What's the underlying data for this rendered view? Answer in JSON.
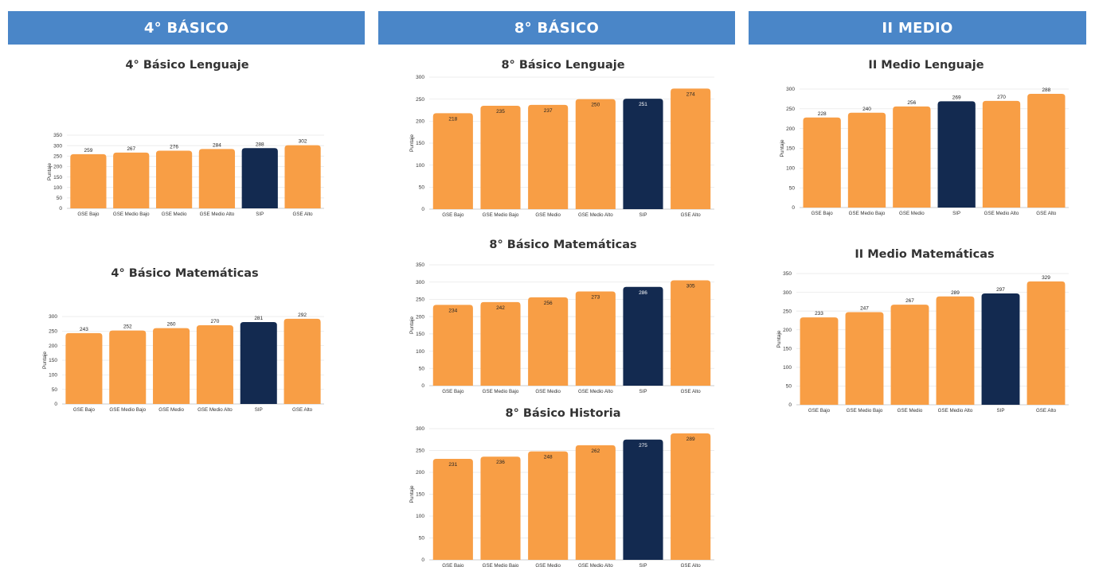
{
  "colors": {
    "header": "#4a86c8",
    "gse": "#f89e45",
    "sip": "#132a50",
    "grid": "#e6e6e6"
  },
  "headers": [
    "4° BÁSICO",
    "8° BÁSICO",
    "II MEDIO"
  ],
  "chart_data": [
    {
      "type": "bar",
      "title": "4° Básico Lenguaje",
      "ylabel": "Puntaje",
      "ylim": [
        0,
        350
      ],
      "yticks": [
        0,
        50,
        100,
        150,
        200,
        250,
        300,
        350
      ],
      "categories": [
        "GSE Bajo",
        "GSE Medio Bajo",
        "GSE Medio",
        "GSE Medio Alto",
        "SIP",
        "GSE Alto"
      ],
      "values": [
        259,
        267,
        276,
        284,
        288,
        302
      ],
      "highlight": "SIP",
      "label_position": "above"
    },
    {
      "type": "bar",
      "title": "4° Básico Matemáticas",
      "ylabel": "Puntaje",
      "ylim": [
        0,
        300
      ],
      "yticks": [
        0,
        50,
        100,
        150,
        200,
        250,
        300
      ],
      "categories": [
        "GSE Bajo",
        "GSE Medio Bajo",
        "GSE Medio",
        "GSE Medio Alto",
        "SIP",
        "GSE Alto"
      ],
      "values": [
        243,
        252,
        260,
        270,
        281,
        292
      ],
      "highlight": "SIP",
      "label_position": "above"
    },
    {
      "type": "bar",
      "title": "8° Básico Lenguaje",
      "ylabel": "Puntaje",
      "ylim": [
        0,
        300
      ],
      "yticks": [
        0,
        50,
        100,
        150,
        200,
        250,
        300
      ],
      "categories": [
        "GSE Bajo",
        "GSE Medio Bajo",
        "GSE Medio",
        "GSE Medio Alto",
        "SIP",
        "GSE Alto"
      ],
      "values": [
        218,
        235,
        237,
        250,
        251,
        274
      ],
      "highlight": "SIP",
      "label_position": "inside"
    },
    {
      "type": "bar",
      "title": "8° Básico Matemáticas",
      "ylabel": "Puntaje",
      "ylim": [
        0,
        350
      ],
      "yticks": [
        0,
        50,
        100,
        150,
        200,
        250,
        300,
        350
      ],
      "categories": [
        "GSE Bajo",
        "GSE Medio Bajo",
        "GSE Medio",
        "GSE Medio Alto",
        "SIP",
        "GSE Alto"
      ],
      "values": [
        234,
        242,
        256,
        273,
        286,
        305
      ],
      "highlight": "SIP",
      "label_position": "inside"
    },
    {
      "type": "bar",
      "title": "8° Básico Historia",
      "ylabel": "Puntaje",
      "ylim": [
        0,
        300
      ],
      "yticks": [
        0,
        50,
        100,
        150,
        200,
        250,
        300
      ],
      "categories": [
        "GSE Bajo",
        "GSE Medio Bajo",
        "GSE Medio",
        "GSE Medio Alto",
        "SIP",
        "GSE Alto"
      ],
      "values": [
        231,
        236,
        248,
        262,
        275,
        289
      ],
      "highlight": "SIP",
      "label_position": "inside"
    },
    {
      "type": "bar",
      "title": "II Medio Lenguaje",
      "ylabel": "Puntaje",
      "ylim": [
        0,
        300
      ],
      "yticks": [
        0,
        50,
        100,
        150,
        200,
        250,
        300
      ],
      "categories": [
        "GSE Bajo",
        "GSE Medio Bajo",
        "GSE Medio",
        "SIP",
        "GSE Medio Alto",
        "GSE Alto"
      ],
      "values": [
        228,
        240,
        256,
        269,
        270,
        288
      ],
      "highlight": "SIP",
      "label_position": "above"
    },
    {
      "type": "bar",
      "title": "II Medio Matemáticas",
      "ylabel": "Puntaje",
      "ylim": [
        0,
        350
      ],
      "yticks": [
        0,
        50,
        100,
        150,
        200,
        250,
        300,
        350
      ],
      "categories": [
        "GSE Bajo",
        "GSE Medio Bajo",
        "GSE Medio",
        "GSE Medio Alto",
        "SIP",
        "GSE Alto"
      ],
      "values": [
        233,
        247,
        267,
        289,
        297,
        329
      ],
      "highlight": "SIP",
      "label_position": "above"
    }
  ]
}
